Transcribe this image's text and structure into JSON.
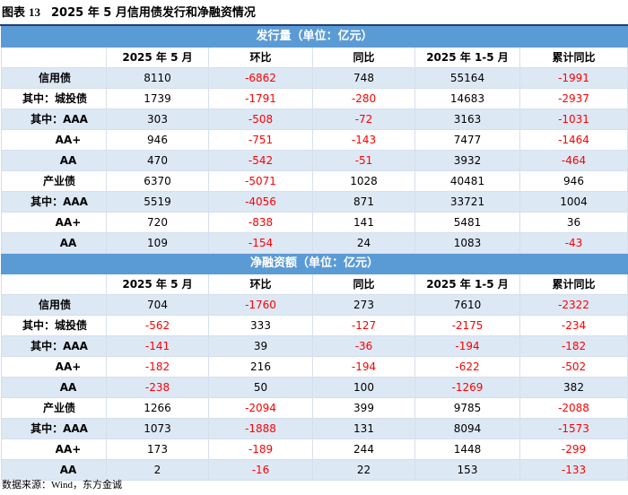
{
  "figure": {
    "label": "图表",
    "number": "13",
    "title": "2025 年 5 月信用债发行和净融资情况"
  },
  "columns": [
    "",
    "2025 年 5 月",
    "环比",
    "同比",
    "2025 年 1-5 月",
    "累计同比"
  ],
  "sections": [
    {
      "title": "发行量（单位：亿元）",
      "rows": [
        {
          "label": "信用债",
          "values": [
            "8110",
            "-6862",
            "748",
            "55164",
            "-1991"
          ]
        },
        {
          "label": "其中：城投债",
          "values": [
            "1739",
            "-1791",
            "-280",
            "14683",
            "-2937"
          ]
        },
        {
          "label": "其中：AAA",
          "values": [
            "303",
            "-508",
            "-72",
            "3163",
            "-1031"
          ]
        },
        {
          "label": "AA+",
          "values": [
            "946",
            "-751",
            "-143",
            "7477",
            "-1464"
          ]
        },
        {
          "label": "AA",
          "values": [
            "470",
            "-542",
            "-51",
            "3932",
            "-464"
          ]
        },
        {
          "label": "产业债",
          "values": [
            "6370",
            "-5071",
            "1028",
            "40481",
            "946"
          ]
        },
        {
          "label": "其中：AAA",
          "values": [
            "5519",
            "-4056",
            "871",
            "33721",
            "1004"
          ]
        },
        {
          "label": "AA+",
          "values": [
            "720",
            "-838",
            "141",
            "5481",
            "36"
          ]
        },
        {
          "label": "AA",
          "values": [
            "109",
            "-154",
            "24",
            "1083",
            "-43"
          ]
        }
      ]
    },
    {
      "title": "净融资额（单位：亿元）",
      "rows": [
        {
          "label": "信用债",
          "values": [
            "704",
            "-1760",
            "273",
            "7610",
            "-2322"
          ]
        },
        {
          "label": "其中：城投债",
          "values": [
            "-562",
            "333",
            "-127",
            "-2175",
            "-234"
          ]
        },
        {
          "label": "其中：AAA",
          "values": [
            "-141",
            "39",
            "-36",
            "-194",
            "-182"
          ]
        },
        {
          "label": "AA+",
          "values": [
            "-182",
            "216",
            "-194",
            "-622",
            "-502"
          ]
        },
        {
          "label": "AA",
          "values": [
            "-238",
            "50",
            "100",
            "-1269",
            "382"
          ]
        },
        {
          "label": "产业债",
          "values": [
            "1266",
            "-2094",
            "399",
            "9785",
            "-2088"
          ]
        },
        {
          "label": "其中：AAA",
          "values": [
            "1073",
            "-1888",
            "131",
            "8094",
            "-1573"
          ]
        },
        {
          "label": "AA+",
          "values": [
            "173",
            "-189",
            "244",
            "1448",
            "-299"
          ]
        },
        {
          "label": "AA",
          "values": [
            "2",
            "-16",
            "22",
            "153",
            "-133"
          ]
        }
      ]
    }
  ],
  "source": {
    "prefix": "数据来源：",
    "names": "Wind",
    "suffix": "，东方金诚"
  },
  "colors": {
    "header_fill": "#5b9bd5",
    "alt_row_fill": "#dde8f5",
    "negative_text": "#ff0000",
    "title_rule": "#1f3f77"
  }
}
